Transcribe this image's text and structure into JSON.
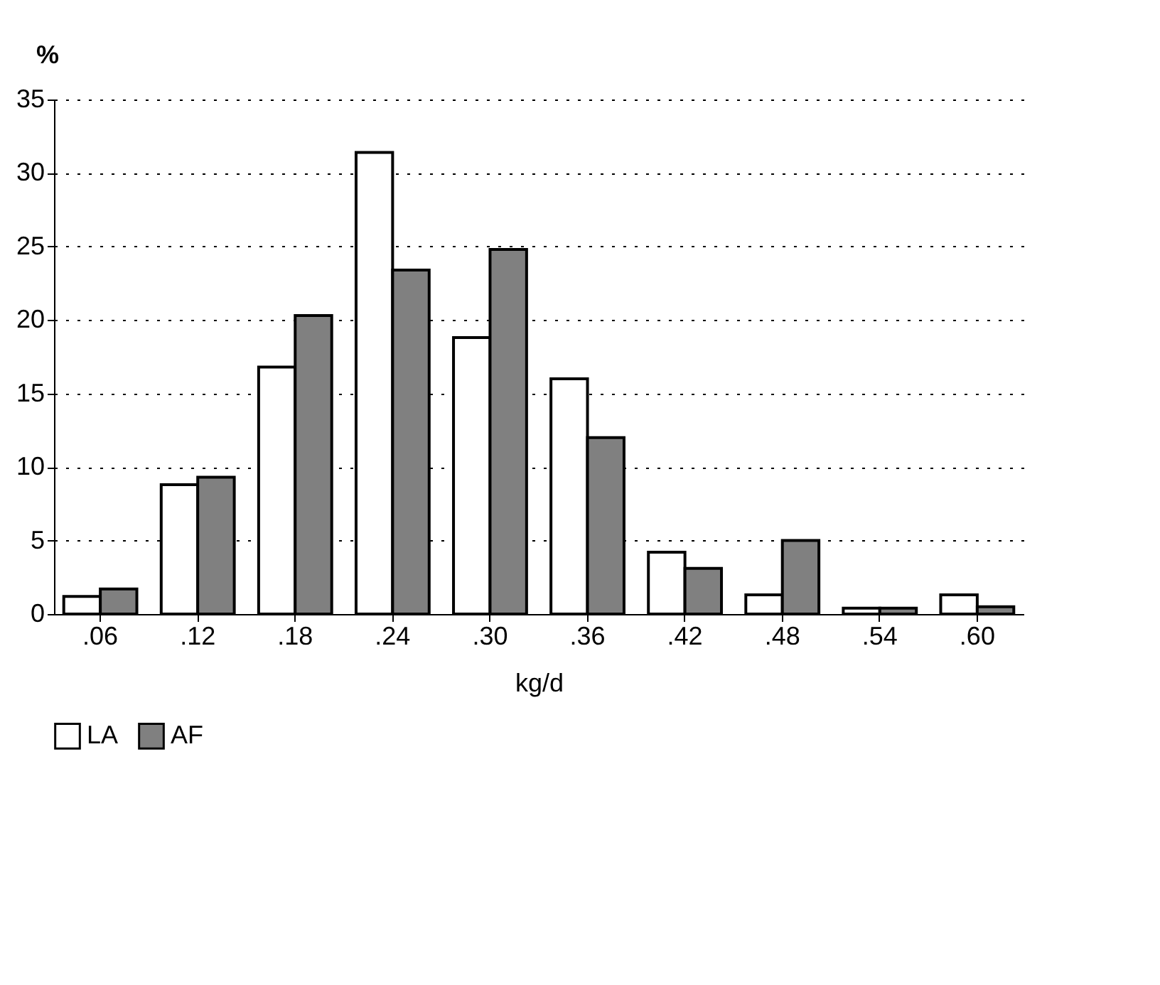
{
  "chart_data": {
    "type": "bar",
    "xlabel": "kg/d",
    "ylabel": "%",
    "categories": [
      ".06",
      ".12",
      ".18",
      ".24",
      ".30",
      ".36",
      ".42",
      ".48",
      ".54",
      ".60"
    ],
    "series": [
      {
        "name": "LA",
        "color": "#ffffff",
        "values": [
          1.2,
          8.8,
          16.8,
          31.4,
          18.8,
          16.0,
          4.2,
          1.3,
          0.4,
          1.3
        ]
      },
      {
        "name": "AF",
        "color": "#808080",
        "values": [
          1.7,
          9.3,
          20.3,
          23.4,
          24.8,
          12.0,
          3.1,
          5.0,
          0.4,
          0.5
        ]
      }
    ],
    "ylim": [
      0,
      35
    ],
    "yticks": [
      0,
      5,
      10,
      15,
      20,
      25,
      30,
      35
    ],
    "grid": "y",
    "legend": "bottom"
  }
}
